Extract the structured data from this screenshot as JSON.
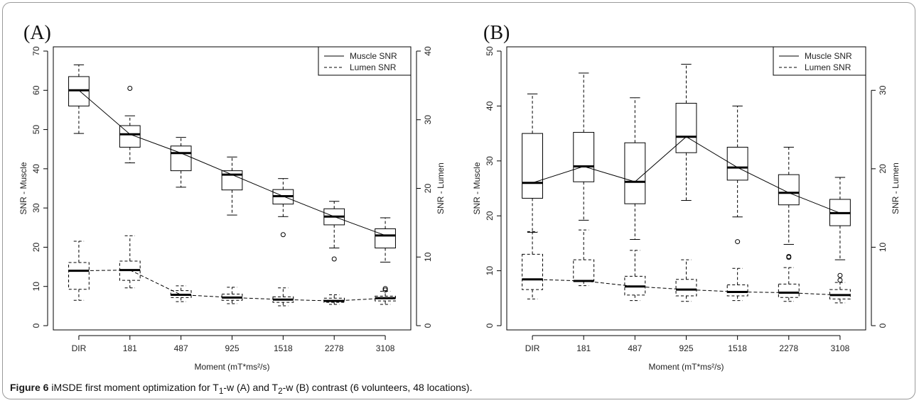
{
  "caption": {
    "lead": "Figure 6",
    "text": "iMSDE first moment optimization for T",
    "sub1": "1",
    "mid": "-w (A) and T",
    "sub2": "2",
    "tail": "-w (B) contrast (6 volunteers, 48 locations)."
  },
  "chart_data": [
    {
      "type": "box",
      "panel_label": "(A)",
      "categories": [
        "DIR",
        "181",
        "487",
        "925",
        "1518",
        "2278",
        "3108"
      ],
      "xlabel": "Moment (mT*ms²/s)",
      "ylabel_left": "SNR - Muscle",
      "ylabel_right": "SNR - Lumen",
      "ylim_left": [
        0,
        70
      ],
      "yticks_left": [
        0,
        10,
        20,
        30,
        40,
        50,
        60,
        70
      ],
      "ylim_right": [
        0,
        40
      ],
      "yticks_right": [
        0,
        10,
        20,
        30,
        40
      ],
      "legend": {
        "position": "top-right",
        "entries": [
          "Muscle SNR",
          "Lumen SNR"
        ]
      },
      "series": [
        {
          "name": "Muscle SNR",
          "axis": "left",
          "line": "solid",
          "boxes": [
            {
              "min": 49,
              "q1": 56,
              "median": 60,
              "q3": 63.5,
              "max": 66.5,
              "outliers": []
            },
            {
              "min": 41.5,
              "q1": 45.5,
              "median": 48.8,
              "q3": 51,
              "max": 53.5,
              "outliers": [
                60.5
              ]
            },
            {
              "min": 35.3,
              "q1": 39.5,
              "median": 44,
              "q3": 45.8,
              "max": 48,
              "outliers": []
            },
            {
              "min": 28.2,
              "q1": 34.6,
              "median": 38.5,
              "q3": 39.5,
              "max": 43,
              "outliers": []
            },
            {
              "min": 27.8,
              "q1": 31,
              "median": 33,
              "q3": 34.7,
              "max": 37.5,
              "outliers": [
                23.2
              ]
            },
            {
              "min": 19.8,
              "q1": 25.7,
              "median": 27.8,
              "q3": 29.8,
              "max": 31.7,
              "outliers": [
                17
              ]
            },
            {
              "min": 16.2,
              "q1": 19.8,
              "median": 23,
              "q3": 24.7,
              "max": 27.5,
              "outliers": []
            }
          ]
        },
        {
          "name": "Lumen SNR",
          "axis": "right",
          "line": "dashed",
          "boxes": [
            {
              "min": 3.7,
              "q1": 5.3,
              "median": 8,
              "q3": 9.2,
              "max": 12.3,
              "outliers": []
            },
            {
              "min": 5.5,
              "q1": 6.6,
              "median": 8.1,
              "q3": 9.4,
              "max": 13.1,
              "outliers": []
            },
            {
              "min": 3.5,
              "q1": 4.1,
              "median": 4.5,
              "q3": 5.1,
              "max": 5.8,
              "outliers": []
            },
            {
              "min": 3.2,
              "q1": 3.7,
              "median": 4.1,
              "q3": 4.6,
              "max": 5.6,
              "outliers": []
            },
            {
              "min": 2.9,
              "q1": 3.4,
              "median": 3.8,
              "q3": 4.2,
              "max": 5.5,
              "outliers": []
            },
            {
              "min": 3.1,
              "q1": 3.4,
              "median": 3.6,
              "q3": 4,
              "max": 4.5,
              "outliers": []
            },
            {
              "min": 3.1,
              "q1": 3.6,
              "median": 4,
              "q3": 4.3,
              "max": 5,
              "outliers": [
                5.2,
                5.4
              ]
            }
          ]
        }
      ]
    },
    {
      "type": "box",
      "panel_label": "(B)",
      "categories": [
        "DIR",
        "181",
        "487",
        "925",
        "1518",
        "2278",
        "3108"
      ],
      "xlabel": "Moment (mT*ms²/s)",
      "ylabel_left": "SNR - Muscle",
      "ylabel_right": "SNR - Lumen",
      "ylim_left": [
        0,
        50
      ],
      "yticks_left": [
        0,
        10,
        20,
        30,
        40,
        50
      ],
      "ylim_right": [
        0,
        35
      ],
      "yticks_right": [
        0,
        10,
        20,
        30
      ],
      "legend": {
        "position": "top-right",
        "entries": [
          "Muscle SNR",
          "Lumen SNR"
        ]
      },
      "series": [
        {
          "name": "Muscle SNR",
          "axis": "left",
          "line": "solid",
          "boxes": [
            {
              "min": 17,
              "q1": 23.2,
              "median": 26,
              "q3": 35,
              "max": 42.2,
              "outliers": []
            },
            {
              "min": 19.2,
              "q1": 26.2,
              "median": 29,
              "q3": 35.2,
              "max": 46,
              "outliers": []
            },
            {
              "min": 15.7,
              "q1": 22.2,
              "median": 26.2,
              "q3": 33.3,
              "max": 41.5,
              "outliers": []
            },
            {
              "min": 22.8,
              "q1": 31.5,
              "median": 34.4,
              "q3": 40.5,
              "max": 47.6,
              "outliers": []
            },
            {
              "min": 19.8,
              "q1": 26.5,
              "median": 28.8,
              "q3": 32.5,
              "max": 40,
              "outliers": [
                15.3
              ]
            },
            {
              "min": 14.8,
              "q1": 22,
              "median": 24.2,
              "q3": 27.5,
              "max": 32.5,
              "outliers": [
                12.6
              ]
            },
            {
              "min": 12,
              "q1": 18.2,
              "median": 20.5,
              "q3": 23,
              "max": 27,
              "outliers": []
            }
          ]
        },
        {
          "name": "Lumen SNR",
          "axis": "right",
          "line": "dashed",
          "boxes": [
            {
              "min": 3.4,
              "q1": 4.6,
              "median": 5.9,
              "q3": 9.1,
              "max": 12,
              "outliers": []
            },
            {
              "min": 5.1,
              "q1": 5.7,
              "median": 5.7,
              "q3": 8.4,
              "max": 12.2,
              "outliers": []
            },
            {
              "min": 3.2,
              "q1": 3.9,
              "median": 5,
              "q3": 6.3,
              "max": 9.6,
              "outliers": []
            },
            {
              "min": 3.1,
              "q1": 3.8,
              "median": 4.6,
              "q3": 5.9,
              "max": 8.4,
              "outliers": []
            },
            {
              "min": 3.2,
              "q1": 3.8,
              "median": 4.3,
              "q3": 5.2,
              "max": 7.3,
              "outliers": []
            },
            {
              "min": 3.1,
              "q1": 3.6,
              "median": 4.2,
              "q3": 5.3,
              "max": 7.4,
              "outliers": [
                8.7
              ]
            },
            {
              "min": 2.9,
              "q1": 3.4,
              "median": 3.9,
              "q3": 4.6,
              "max": 5.5,
              "outliers": [
                5.8,
                6.4
              ]
            }
          ]
        }
      ]
    }
  ]
}
